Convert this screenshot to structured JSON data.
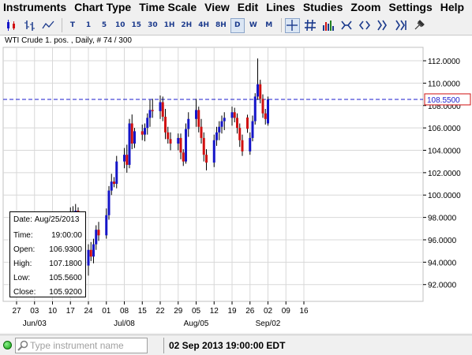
{
  "menu": {
    "items": [
      "Instruments",
      "Chart Type",
      "Time Scale",
      "View",
      "Edit",
      "Lines",
      "Studies",
      "Zoom",
      "Settings",
      "Help"
    ]
  },
  "toolbar": {
    "timescales": [
      "T",
      "1",
      "5",
      "10",
      "15",
      "30",
      "1H",
      "2H",
      "4H",
      "8H",
      "D",
      "W",
      "M"
    ],
    "active_timescale": "D"
  },
  "chart": {
    "title": "WTI Crude 1. pos. , Daily, # 74 / 300",
    "current_price_label": "108.5500",
    "colors": {
      "up": "#1515c8",
      "down": "#d01010",
      "hline": "#1a1acc",
      "grid": "#d8d8d8"
    }
  },
  "chart_data": {
    "type": "candlestick",
    "title": "WTI Crude 1. pos. , Daily, # 74 / 300",
    "ylim": [
      90.5,
      113.2
    ],
    "y_ticks": [
      "112.0000",
      "110.0000",
      "108.0000",
      "106.0000",
      "104.0000",
      "102.0000",
      "100.0000",
      "98.0000",
      "96.0000",
      "94.0000",
      "92.0000"
    ],
    "y_tick_values": [
      112,
      110,
      108,
      106,
      104,
      102,
      100,
      98,
      96,
      94,
      92
    ],
    "x_ticks": [
      "27",
      "03",
      "10",
      "17",
      "24",
      "01",
      "08",
      "15",
      "22",
      "29",
      "05",
      "12",
      "19",
      "26",
      "02",
      "09",
      "16"
    ],
    "x_tick_dates": [
      "2013-05-27",
      "2013-06-03",
      "2013-06-10",
      "2013-06-17",
      "2013-06-24",
      "2013-07-01",
      "2013-07-08",
      "2013-07-15",
      "2013-07-22",
      "2013-07-29",
      "2013-08-05",
      "2013-08-12",
      "2013-08-19",
      "2013-08-26",
      "2013-09-02",
      "2013-09-09",
      "2013-09-16"
    ],
    "month_labels": [
      {
        "label": "Jun/03",
        "date": "2013-06-03"
      },
      {
        "label": "Jul/08",
        "date": "2013-07-08"
      },
      {
        "label": "Aug/05",
        "date": "2013-08-05"
      },
      {
        "label": "Sep/02",
        "date": "2013-09-02"
      }
    ],
    "horizontal_line": 108.55,
    "candles": [
      {
        "date": "2013-05-27",
        "open": 93.1,
        "high": 94.5,
        "low": 91.7,
        "close": 94.2
      },
      {
        "date": "2013-05-28",
        "open": 94.2,
        "high": 95.0,
        "low": 93.4,
        "close": 93.8
      },
      {
        "date": "2013-05-29",
        "open": 93.8,
        "high": 94.3,
        "low": 92.6,
        "close": 93.0
      },
      {
        "date": "2013-05-30",
        "open": 93.0,
        "high": 93.6,
        "low": 91.9,
        "close": 92.4
      },
      {
        "date": "2013-05-31",
        "open": 92.4,
        "high": 93.9,
        "low": 91.6,
        "close": 93.5
      },
      {
        "date": "2013-06-03",
        "open": 93.5,
        "high": 94.4,
        "low": 92.7,
        "close": 93.0
      },
      {
        "date": "2013-06-04",
        "open": 93.0,
        "high": 94.0,
        "low": 92.1,
        "close": 93.6
      },
      {
        "date": "2013-06-05",
        "open": 93.6,
        "high": 95.2,
        "low": 93.0,
        "close": 94.6
      },
      {
        "date": "2013-06-06",
        "open": 94.6,
        "high": 96.0,
        "low": 94.0,
        "close": 95.5
      },
      {
        "date": "2013-06-07",
        "open": 95.5,
        "high": 97.1,
        "low": 95.0,
        "close": 96.3
      },
      {
        "date": "2013-06-10",
        "open": 96.3,
        "high": 96.9,
        "low": 95.4,
        "close": 95.8
      },
      {
        "date": "2013-06-11",
        "open": 95.8,
        "high": 96.5,
        "low": 94.8,
        "close": 95.2
      },
      {
        "date": "2013-06-12",
        "open": 95.2,
        "high": 96.4,
        "low": 94.9,
        "close": 96.1
      },
      {
        "date": "2013-06-13",
        "open": 96.1,
        "high": 97.4,
        "low": 95.6,
        "close": 96.9
      },
      {
        "date": "2013-06-14",
        "open": 96.9,
        "high": 98.3,
        "low": 96.4,
        "close": 97.8
      },
      {
        "date": "2013-06-17",
        "open": 97.8,
        "high": 98.9,
        "low": 97.2,
        "close": 98.4
      },
      {
        "date": "2013-06-18",
        "open": 98.4,
        "high": 99.0,
        "low": 97.5,
        "close": 98.0
      },
      {
        "date": "2013-06-19",
        "open": 98.0,
        "high": 99.2,
        "low": 97.5,
        "close": 98.6
      },
      {
        "date": "2013-06-20",
        "open": 98.6,
        "high": 98.9,
        "low": 94.8,
        "close": 95.4
      },
      {
        "date": "2013-06-21",
        "open": 95.4,
        "high": 95.8,
        "low": 93.0,
        "close": 93.7
      },
      {
        "date": "2013-06-24",
        "open": 93.7,
        "high": 95.6,
        "low": 92.8,
        "close": 95.1
      },
      {
        "date": "2013-06-25",
        "open": 95.1,
        "high": 95.8,
        "low": 94.1,
        "close": 94.5
      },
      {
        "date": "2013-06-26",
        "open": 94.5,
        "high": 96.1,
        "low": 93.9,
        "close": 95.6
      },
      {
        "date": "2013-06-27",
        "open": 95.6,
        "high": 97.3,
        "low": 95.1,
        "close": 96.9
      },
      {
        "date": "2013-06-28",
        "open": 96.9,
        "high": 97.6,
        "low": 95.9,
        "close": 96.4
      },
      {
        "date": "2013-07-01",
        "open": 96.4,
        "high": 98.8,
        "low": 96.1,
        "close": 98.2
      },
      {
        "date": "2013-07-02",
        "open": 98.2,
        "high": 100.8,
        "low": 97.8,
        "close": 100.4
      },
      {
        "date": "2013-07-03",
        "open": 100.4,
        "high": 101.9,
        "low": 100.0,
        "close": 101.2
      },
      {
        "date": "2013-07-04",
        "open": 101.2,
        "high": 101.6,
        "low": 100.7,
        "close": 101.0
      },
      {
        "date": "2013-07-05",
        "open": 101.0,
        "high": 103.5,
        "low": 100.6,
        "close": 103.0
      },
      {
        "date": "2013-07-08",
        "open": 103.0,
        "high": 104.2,
        "low": 102.4,
        "close": 103.6
      },
      {
        "date": "2013-07-09",
        "open": 103.6,
        "high": 104.5,
        "low": 102.0,
        "close": 102.7
      },
      {
        "date": "2013-07-10",
        "open": 102.7,
        "high": 106.8,
        "low": 102.4,
        "close": 106.4
      },
      {
        "date": "2013-07-11",
        "open": 106.4,
        "high": 107.2,
        "low": 104.1,
        "close": 104.6
      },
      {
        "date": "2013-07-12",
        "open": 104.6,
        "high": 106.0,
        "low": 104.2,
        "close": 105.7
      },
      {
        "date": "2013-07-15",
        "open": 105.7,
        "high": 106.3,
        "low": 104.9,
        "close": 105.4
      },
      {
        "date": "2013-07-16",
        "open": 105.4,
        "high": 106.4,
        "low": 104.8,
        "close": 106.0
      },
      {
        "date": "2013-07-17",
        "open": 106.0,
        "high": 107.3,
        "low": 105.4,
        "close": 106.9
      },
      {
        "date": "2013-07-18",
        "open": 106.9,
        "high": 108.5,
        "low": 106.1,
        "close": 107.6
      },
      {
        "date": "2013-07-19",
        "open": 107.6,
        "high": 108.6,
        "low": 106.9,
        "close": 107.5
      },
      {
        "date": "2013-07-22",
        "open": 107.5,
        "high": 108.9,
        "low": 106.8,
        "close": 108.3
      },
      {
        "date": "2013-07-23",
        "open": 108.3,
        "high": 108.8,
        "low": 106.6,
        "close": 107.0
      },
      {
        "date": "2013-07-24",
        "open": 107.0,
        "high": 107.7,
        "low": 105.0,
        "close": 105.6
      },
      {
        "date": "2013-07-25",
        "open": 105.6,
        "high": 106.1,
        "low": 104.6,
        "close": 105.0
      },
      {
        "date": "2013-07-26",
        "open": 105.0,
        "high": 105.6,
        "low": 104.0,
        "close": 104.6
      },
      {
        "date": "2013-07-29",
        "open": 104.6,
        "high": 105.5,
        "low": 104.0,
        "close": 105.1
      },
      {
        "date": "2013-07-30",
        "open": 105.1,
        "high": 105.5,
        "low": 103.2,
        "close": 103.8
      },
      {
        "date": "2013-07-31",
        "open": 103.8,
        "high": 104.1,
        "low": 102.6,
        "close": 103.0
      },
      {
        "date": "2013-08-01",
        "open": 103.0,
        "high": 106.4,
        "low": 102.8,
        "close": 105.9
      },
      {
        "date": "2013-08-02",
        "open": 105.9,
        "high": 107.4,
        "low": 105.2,
        "close": 106.8
      },
      {
        "date": "2013-08-05",
        "open": 106.8,
        "high": 108.6,
        "low": 106.1,
        "close": 107.6
      },
      {
        "date": "2013-08-06",
        "open": 107.6,
        "high": 107.9,
        "low": 105.6,
        "close": 106.1
      },
      {
        "date": "2013-08-07",
        "open": 106.1,
        "high": 106.8,
        "low": 104.6,
        "close": 105.1
      },
      {
        "date": "2013-08-08",
        "open": 105.1,
        "high": 105.6,
        "low": 103.0,
        "close": 103.6
      },
      {
        "date": "2013-08-09",
        "open": 103.6,
        "high": 104.1,
        "low": 102.2,
        "close": 102.9
      },
      {
        "date": "2013-08-12",
        "open": 102.9,
        "high": 105.4,
        "low": 102.5,
        "close": 104.9
      },
      {
        "date": "2013-08-13",
        "open": 104.9,
        "high": 106.1,
        "low": 104.4,
        "close": 105.6
      },
      {
        "date": "2013-08-14",
        "open": 105.6,
        "high": 106.6,
        "low": 104.9,
        "close": 106.1
      },
      {
        "date": "2013-08-15",
        "open": 106.1,
        "high": 107.1,
        "low": 105.5,
        "close": 106.6
      },
      {
        "date": "2013-08-16",
        "open": 106.6,
        "high": 107.4,
        "low": 105.8,
        "close": 106.9
      },
      {
        "date": "2013-08-19",
        "open": 106.9,
        "high": 107.9,
        "low": 106.2,
        "close": 107.4
      },
      {
        "date": "2013-08-20",
        "open": 107.4,
        "high": 107.8,
        "low": 106.5,
        "close": 106.9
      },
      {
        "date": "2013-08-21",
        "open": 106.9,
        "high": 107.3,
        "low": 105.5,
        "close": 106.0
      },
      {
        "date": "2013-08-22",
        "open": 106.0,
        "high": 106.4,
        "low": 104.3,
        "close": 104.9
      },
      {
        "date": "2013-08-23",
        "open": 104.9,
        "high": 105.4,
        "low": 103.5,
        "close": 103.9
      },
      {
        "date": "2013-08-26",
        "open": 103.9,
        "high": 105.6,
        "low": 103.6,
        "close": 105.1
      },
      {
        "date": "2013-08-27",
        "open": 105.1,
        "high": 107.1,
        "low": 104.8,
        "close": 106.6
      },
      {
        "date": "2013-08-28",
        "open": 106.6,
        "high": 109.1,
        "low": 106.3,
        "close": 108.8
      },
      {
        "date": "2013-08-29",
        "open": 108.8,
        "high": 112.2,
        "low": 108.5,
        "close": 109.9
      },
      {
        "date": "2013-08-30",
        "open": 109.9,
        "high": 110.3,
        "low": 108.2,
        "close": 108.6
      },
      {
        "date": "2013-08-31",
        "open": 108.6,
        "high": 109.0,
        "low": 106.9,
        "close": 107.3
      },
      {
        "date": "2013-09-01",
        "open": 107.3,
        "high": 107.7,
        "low": 106.3,
        "close": 106.8
      },
      {
        "date": "2013-08-25",
        "open": 106.93,
        "high": 107.18,
        "low": 105.56,
        "close": 105.92
      },
      {
        "date": "2013-09-02",
        "open": 106.4,
        "high": 108.8,
        "low": 106.2,
        "close": 108.55
      }
    ]
  },
  "tooltip": {
    "date_label": "Date:",
    "date_value": "Aug/25/2013",
    "rows": [
      {
        "label": "Time:",
        "value": "19:00:00"
      },
      {
        "label": "Open:",
        "value": "106.9300"
      },
      {
        "label": "High:",
        "value": "107.1800"
      },
      {
        "label": "Low:",
        "value": "105.5600"
      },
      {
        "label": "Close:",
        "value": "105.9200"
      }
    ]
  },
  "status": {
    "search_placeholder": "Type instrument name",
    "datetime": "02 Sep 2013 19:00:00 EDT"
  }
}
